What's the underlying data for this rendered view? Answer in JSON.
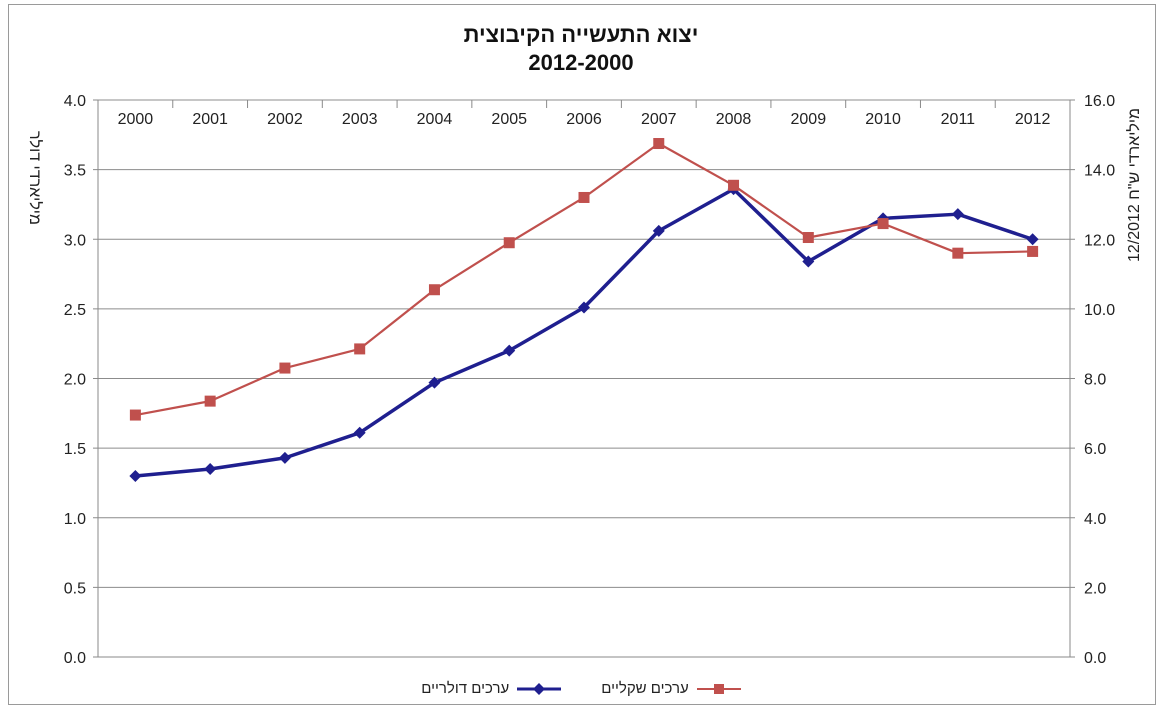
{
  "chart_data": {
    "type": "line",
    "title": "יצוא התעשייה הקיבוצית",
    "subtitle": "2012-2000",
    "x": [
      "2000",
      "2001",
      "2002",
      "2003",
      "2004",
      "2005",
      "2006",
      "2007",
      "2008",
      "2009",
      "2010",
      "2011",
      "2012"
    ],
    "y_left": {
      "label": "מיליארדי דולר",
      "lim": [
        0,
        4.0
      ],
      "ticks": [
        "0.0",
        "0.5",
        "1.0",
        "1.5",
        "2.0",
        "2.5",
        "3.0",
        "3.5",
        "4.0"
      ]
    },
    "y_right": {
      "label": "מיליארדי ש\"ח 12/2012",
      "lim": [
        0,
        16.0
      ],
      "ticks": [
        "0.0",
        "2.0",
        "4.0",
        "6.0",
        "8.0",
        "10.0",
        "12.0",
        "14.0",
        "16.0"
      ]
    },
    "series": [
      {
        "name": "ערכים דולריים",
        "axis": "left",
        "color": "#1f1f8f",
        "marker": "diamond",
        "values": [
          1.3,
          1.35,
          1.43,
          1.61,
          1.97,
          2.2,
          2.51,
          3.06,
          3.36,
          2.84,
          3.15,
          3.18,
          3.0
        ]
      },
      {
        "name": "ערכים שקליים",
        "axis": "right",
        "color": "#c0504d",
        "marker": "square",
        "values": [
          6.95,
          7.35,
          8.3,
          8.85,
          10.55,
          11.9,
          13.2,
          14.75,
          13.55,
          12.05,
          12.45,
          11.6,
          11.65
        ]
      }
    ],
    "grid": "horizontal",
    "legend_position": "bottom"
  }
}
